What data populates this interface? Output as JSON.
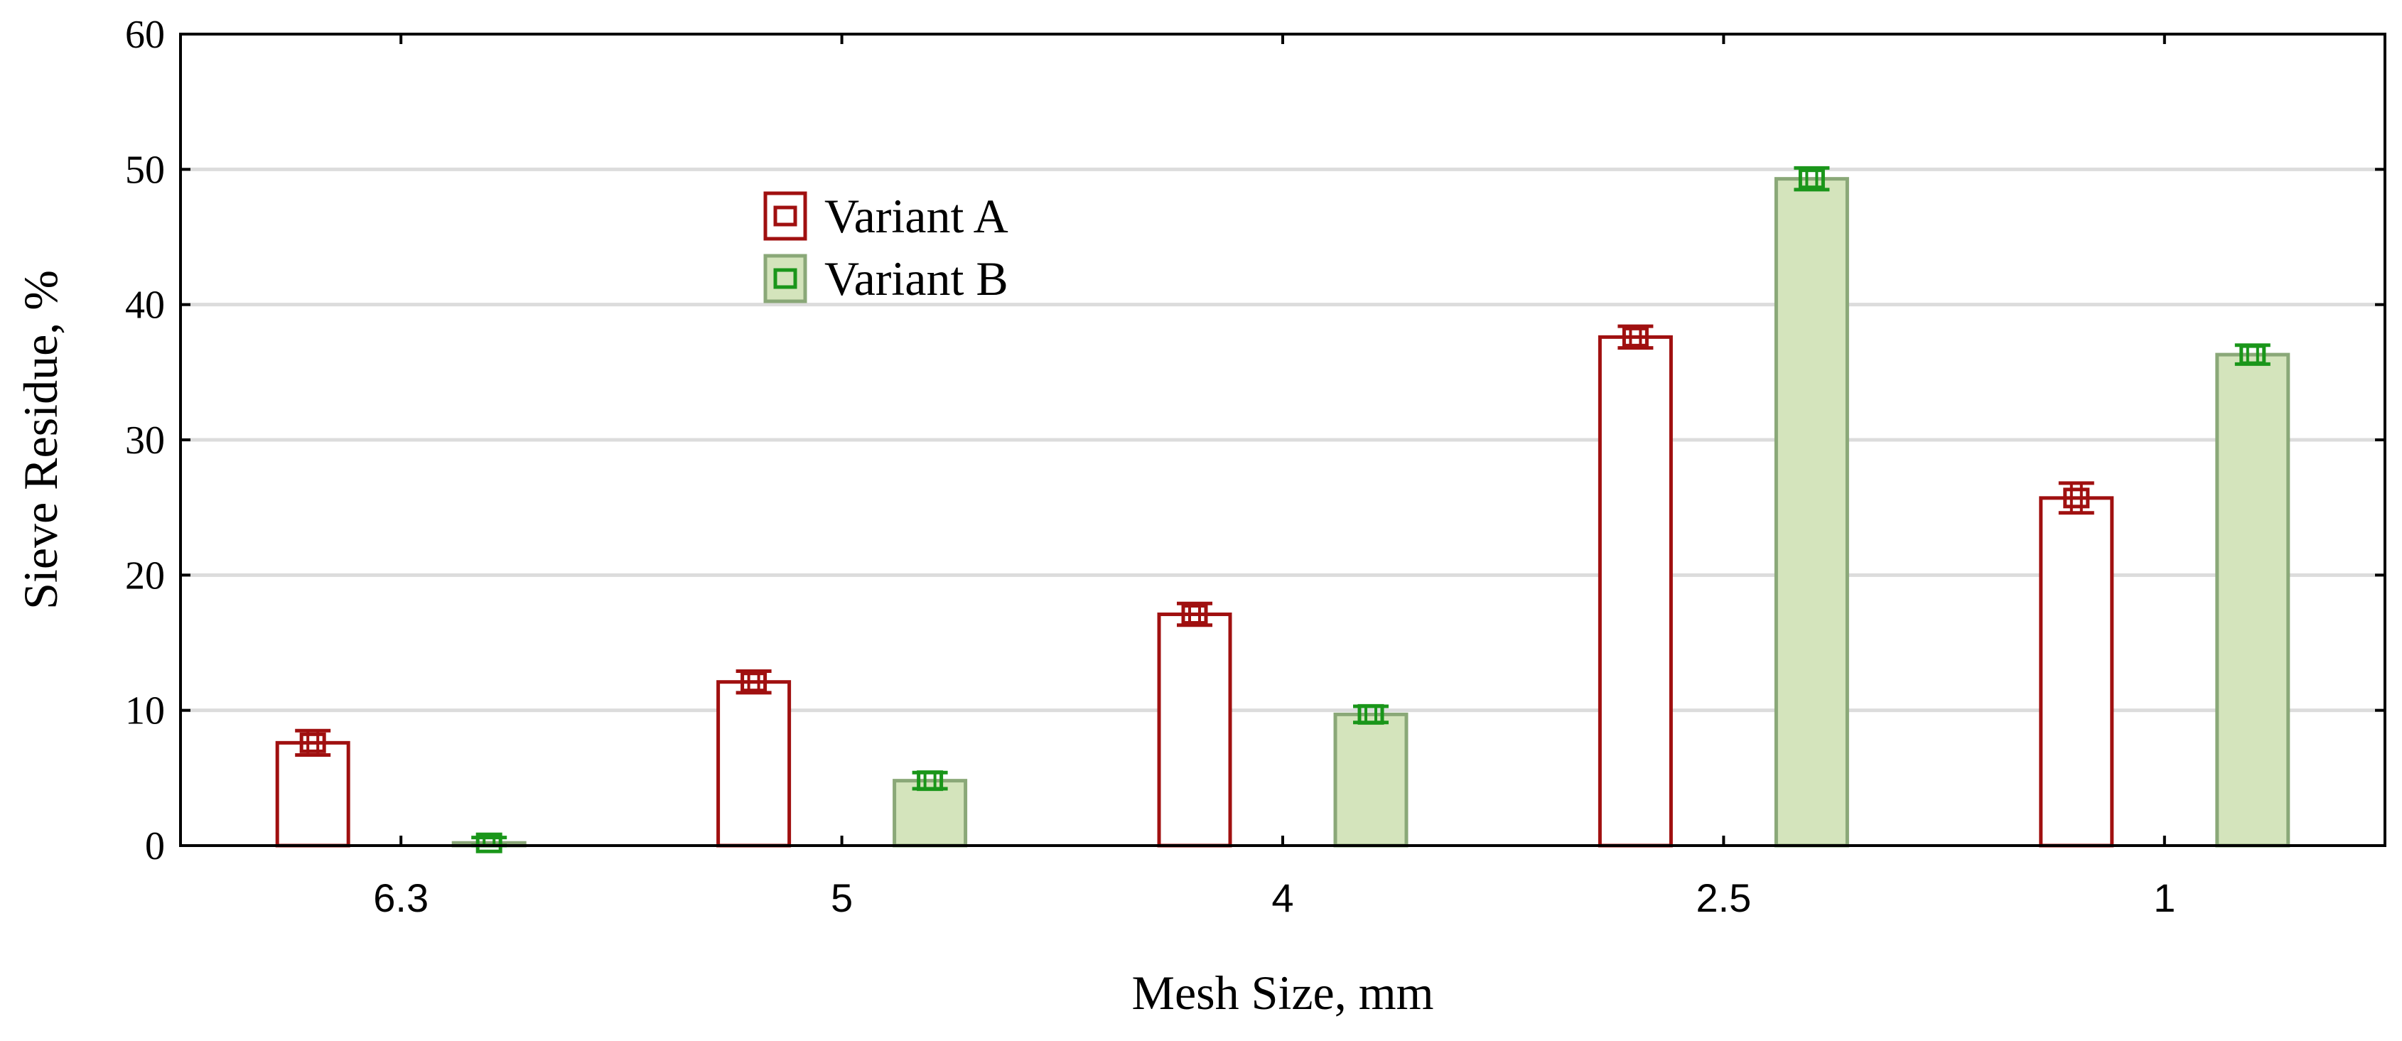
{
  "chart_data": {
    "type": "bar",
    "xlabel": "Mesh Size, mm",
    "ylabel": "Sieve Residue, %",
    "categories": [
      "6.3",
      "5",
      "4",
      "2.5",
      "1"
    ],
    "ylim": [
      0,
      60
    ],
    "yticks": [
      0,
      10,
      20,
      30,
      40,
      50,
      60
    ],
    "grid": true,
    "legend_position": "upper-left",
    "error_bars": true,
    "series": [
      {
        "name": "Variant A",
        "values": [
          7.6,
          12.1,
          17.1,
          37.6,
          25.7
        ],
        "errors": [
          0.9,
          0.8,
          0.8,
          0.8,
          1.1
        ],
        "stroke": "#a01010",
        "fill": "#ffffff"
      },
      {
        "name": "Variant B",
        "values": [
          0.2,
          4.8,
          9.7,
          49.3,
          36.3
        ],
        "errors": [
          0.4,
          0.6,
          0.6,
          0.8,
          0.7
        ],
        "stroke": "#8aa878",
        "fill": "#d4e4bc",
        "marker_color": "#1a961a"
      }
    ]
  }
}
